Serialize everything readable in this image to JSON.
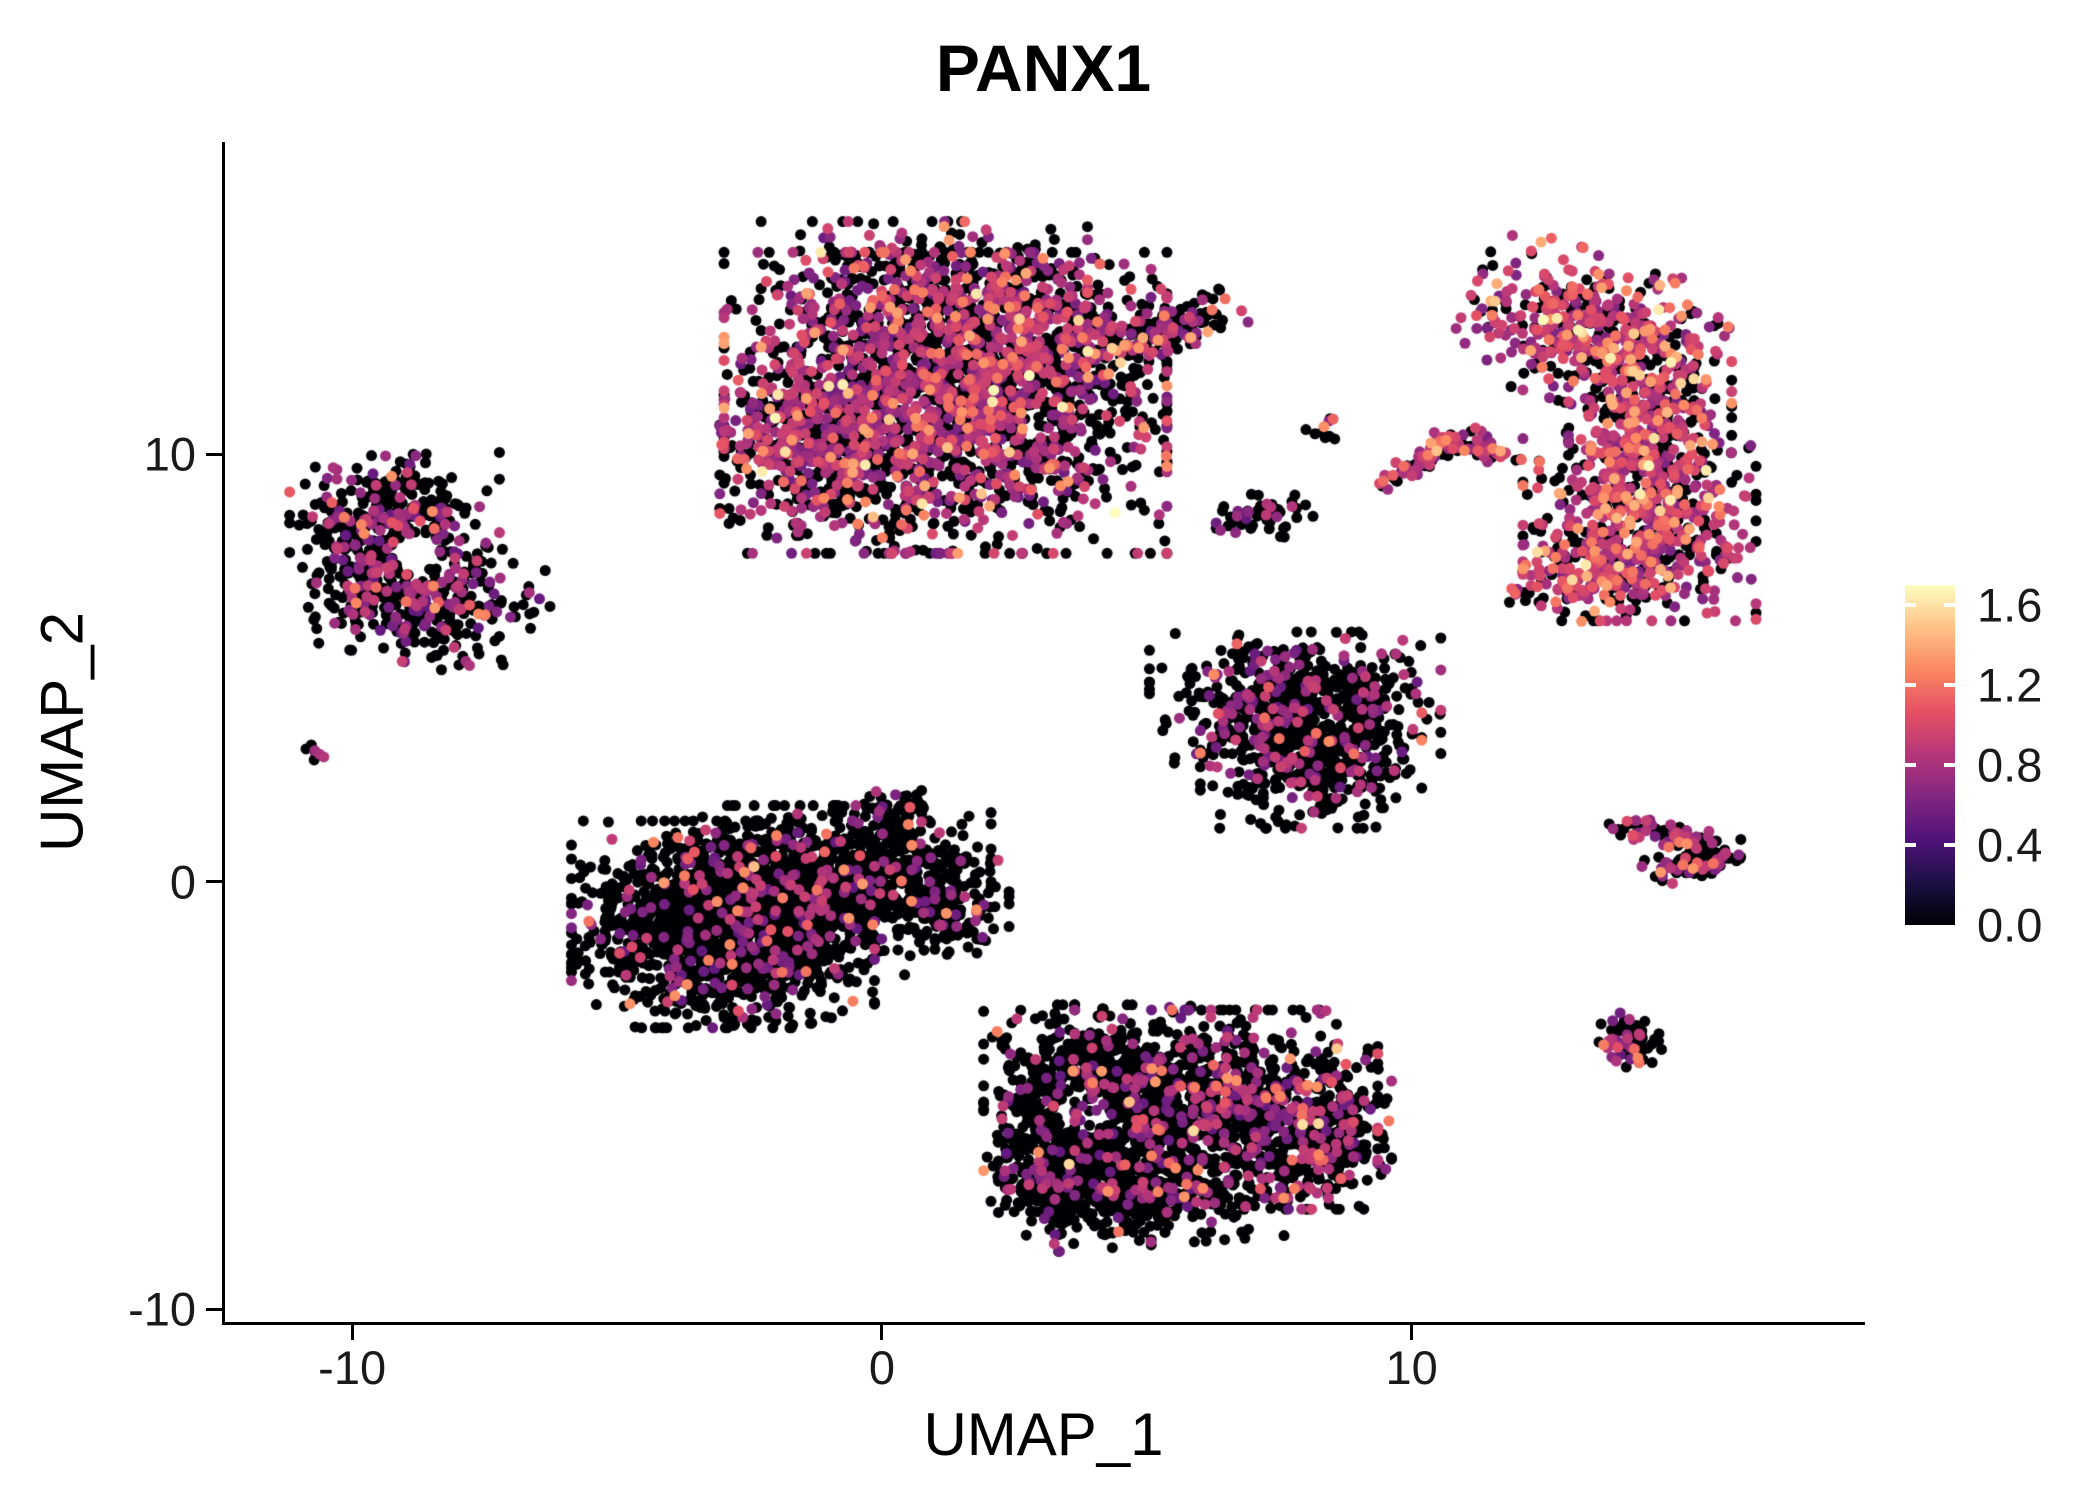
{
  "chart_data": {
    "type": "scatter",
    "title": "PANX1",
    "xlabel": "UMAP_1",
    "ylabel": "UMAP_2",
    "xlim": [
      -12.4,
      18.5
    ],
    "ylim": [
      -10.3,
      17.3
    ],
    "xticks": [
      -10,
      0,
      10
    ],
    "yticks": [
      -10,
      0,
      10
    ],
    "grid": false,
    "legend_position": "right",
    "point_radius_px": 5.5,
    "seed": 20240611,
    "colorbar": {
      "ticks": [
        1.6,
        1.2,
        0.8,
        0.4,
        0.0
      ],
      "vmin": 0.0,
      "vmax": 1.7,
      "colormap": "magma",
      "stops": [
        "#000004",
        "#1c1044",
        "#4f127b",
        "#812581",
        "#b5367a",
        "#e55064",
        "#fb8761",
        "#fec287",
        "#fcfdbf"
      ]
    },
    "blob_format": "[cx, cy, sx, sy, rot_deg, n_points]",
    "expr_format": "p0 = fraction of zero-expression (black) cells; bands = [lo, hi, probability]",
    "clusters": [
      {
        "name": "top-center-large",
        "blobs": [
          [
            1.2,
            11.2,
            1.9,
            1.6,
            0,
            2000
          ],
          [
            -1.3,
            10.3,
            0.8,
            1.0,
            0,
            400
          ],
          [
            0.8,
            13.9,
            1.4,
            0.7,
            0,
            350
          ],
          [
            3.2,
            12.6,
            1.0,
            0.9,
            0,
            350
          ],
          [
            5.3,
            12.9,
            0.7,
            0.25,
            25,
            120
          ]
        ],
        "holes": [],
        "expr": {
          "p0": 0.52,
          "bands": [
            [
              0.55,
              1.0,
              0.4
            ],
            [
              1.0,
              1.4,
              0.07
            ],
            [
              1.45,
              1.7,
              0.01
            ]
          ]
        }
      },
      {
        "name": "left-cluster",
        "blobs": [
          [
            -9.2,
            8.5,
            0.9,
            0.7,
            0,
            260
          ],
          [
            -8.5,
            6.6,
            1.0,
            0.7,
            -15,
            300
          ],
          [
            -9.7,
            7.3,
            0.5,
            0.6,
            0,
            120
          ]
        ],
        "holes": [
          [
            -8.8,
            7.7,
            0.45
          ]
        ],
        "expr": {
          "p0": 0.72,
          "bands": [
            [
              0.5,
              0.95,
              0.25
            ],
            [
              1.0,
              1.35,
              0.028
            ],
            [
              1.45,
              1.6,
              0.002
            ]
          ]
        }
      },
      {
        "name": "tiny-far-left",
        "blobs": [
          [
            -10.7,
            3.0,
            0.13,
            0.1,
            0,
            7
          ]
        ],
        "holes": [],
        "expr": {
          "p0": 0.3,
          "bands": [
            [
              0.6,
              0.9,
              0.7
            ]
          ]
        }
      },
      {
        "name": "mid-left-large",
        "blobs": [
          [
            -3.0,
            -1.0,
            1.3,
            1.1,
            0,
            1500
          ],
          [
            -1.2,
            -0.2,
            1.0,
            0.9,
            0,
            600
          ],
          [
            0.3,
            0.2,
            0.8,
            0.7,
            0,
            300
          ],
          [
            1.3,
            -0.6,
            0.5,
            0.5,
            0,
            120
          ],
          [
            0.3,
            1.5,
            0.3,
            0.5,
            0,
            60
          ]
        ],
        "holes": [],
        "expr": {
          "p0": 0.885,
          "bands": [
            [
              0.5,
              0.95,
              0.1
            ],
            [
              1.0,
              1.35,
              0.014
            ],
            [
              1.45,
              1.6,
              0.001
            ]
          ]
        }
      },
      {
        "name": "mid-right-trapezoid",
        "blobs": [
          [
            7.8,
            4.3,
            1.25,
            0.7,
            0,
            480
          ],
          [
            8.1,
            2.9,
            0.95,
            0.75,
            0,
            420
          ]
        ],
        "holes": [],
        "expr": {
          "p0": 0.8,
          "bands": [
            [
              0.5,
              0.95,
              0.18
            ],
            [
              1.0,
              1.35,
              0.02
            ]
          ]
        }
      },
      {
        "name": "small-black-upper-mid",
        "blobs": [
          [
            7.3,
            8.5,
            0.45,
            0.3,
            0,
            55
          ]
        ],
        "holes": [],
        "expr": {
          "p0": 0.85,
          "bands": [
            [
              0.5,
              0.9,
              0.15
            ]
          ]
        }
      },
      {
        "name": "tiny-upper-mid",
        "blobs": [
          [
            8.4,
            10.6,
            0.18,
            0.12,
            0,
            10
          ]
        ],
        "holes": [],
        "expr": {
          "p0": 0.5,
          "bands": [
            [
              0.6,
              1.0,
              0.4
            ],
            [
              1.0,
              1.3,
              0.1
            ]
          ]
        }
      },
      {
        "name": "diagonal-strip",
        "blobs": [
          [
            10.3,
            9.9,
            0.55,
            0.12,
            35,
            70
          ],
          [
            11.3,
            10.1,
            0.45,
            0.1,
            -20,
            50
          ]
        ],
        "holes": [],
        "expr": {
          "p0": 0.35,
          "bands": [
            [
              0.6,
              1.0,
              0.5
            ],
            [
              1.0,
              1.4,
              0.13
            ],
            [
              1.45,
              1.7,
              0.02
            ]
          ]
        }
      },
      {
        "name": "right-crescent",
        "blobs": [
          [
            13.4,
            12.9,
            1.1,
            0.8,
            -20,
            450
          ],
          [
            14.5,
            10.8,
            0.7,
            1.0,
            0,
            380
          ],
          [
            14.3,
            8.3,
            1.0,
            1.0,
            0,
            550
          ],
          [
            13.3,
            7.0,
            0.7,
            0.4,
            10,
            120
          ]
        ],
        "holes": [],
        "expr": {
          "p0": 0.33,
          "bands": [
            [
              0.6,
              1.05,
              0.5
            ],
            [
              1.05,
              1.45,
              0.15
            ],
            [
              1.5,
              1.7,
              0.02
            ]
          ]
        }
      },
      {
        "name": "right-arrow",
        "blobs": [
          [
            15.0,
            1.0,
            0.6,
            0.15,
            -15,
            80
          ],
          [
            15.3,
            0.4,
            0.5,
            0.15,
            15,
            70
          ]
        ],
        "holes": [],
        "expr": {
          "p0": 0.55,
          "bands": [
            [
              0.55,
              1.0,
              0.38
            ],
            [
              1.0,
              1.35,
              0.07
            ]
          ]
        }
      },
      {
        "name": "small-round-bottom-right",
        "blobs": [
          [
            14.1,
            -3.7,
            0.28,
            0.3,
            0,
            65
          ]
        ],
        "holes": [],
        "expr": {
          "p0": 0.72,
          "bands": [
            [
              0.5,
              0.9,
              0.2
            ],
            [
              1.0,
              1.35,
              0.08
            ]
          ]
        }
      },
      {
        "name": "bottom-center-left",
        "blobs": [
          [
            3.9,
            -5.3,
            0.9,
            1.1,
            0,
            750
          ],
          [
            3.3,
            -6.9,
            0.5,
            0.5,
            0,
            150
          ],
          [
            5.0,
            -7.4,
            1.2,
            0.5,
            5,
            350
          ]
        ],
        "holes": [
          [
            3.8,
            -5.4,
            0.5
          ]
        ],
        "expr": {
          "p0": 0.87,
          "bands": [
            [
              0.5,
              0.95,
              0.115
            ],
            [
              1.0,
              1.35,
              0.014
            ],
            [
              1.45,
              1.6,
              0.001
            ]
          ]
        }
      },
      {
        "name": "bottom-center-right",
        "blobs": [
          [
            6.5,
            -5.2,
            1.3,
            1.0,
            0,
            900
          ],
          [
            8.3,
            -5.9,
            0.6,
            0.8,
            0,
            250
          ]
        ],
        "holes": [],
        "expr": {
          "p0": 0.72,
          "bands": [
            [
              0.5,
              0.95,
              0.25
            ],
            [
              1.0,
              1.35,
              0.028
            ],
            [
              1.45,
              1.6,
              0.002
            ]
          ]
        }
      }
    ]
  },
  "style": {
    "background": "#ffffff",
    "axis_color": "#000000",
    "tick_label_color": "#1a1a1a"
  }
}
